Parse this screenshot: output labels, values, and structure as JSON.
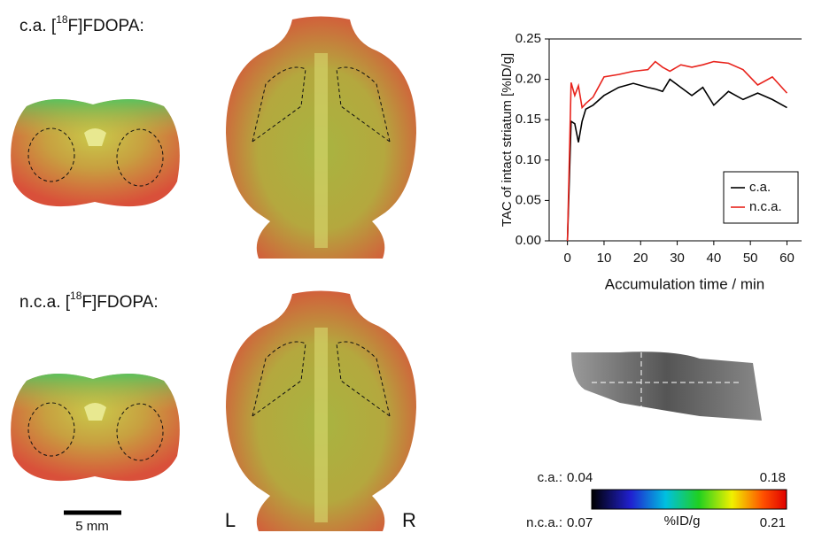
{
  "panels": {
    "ca_title": {
      "prefix": "c.a. [",
      "sup": "18",
      "suffix": "F]FDOPA:"
    },
    "nca_title": {
      "prefix": "n.c.a. [",
      "sup": "18",
      "suffix": "F]FDOPA:"
    },
    "scale_bar": "5 mm",
    "left": "L",
    "right": "R"
  },
  "colorbar": {
    "ca_label": "c.a.:",
    "ca_min": "0.04",
    "ca_max": "0.18",
    "nca_label": "n.c.a.:",
    "nca_min": "0.07",
    "nca_max": "0.21",
    "unit": "%ID/g"
  },
  "chart_data": {
    "type": "line",
    "x_label": "Accumulation time / min",
    "y_label": "TAC of intact striatum [%ID/g]",
    "x": [
      0,
      1,
      2,
      3,
      4,
      5,
      7,
      10,
      14,
      18,
      22,
      24,
      26,
      28,
      31,
      34,
      37,
      40,
      44,
      48,
      52,
      56,
      60
    ],
    "series": [
      {
        "name": "c.a.",
        "color": "#000000",
        "values": [
          0,
          0.148,
          0.145,
          0.122,
          0.148,
          0.163,
          0.168,
          0.18,
          0.19,
          0.195,
          0.19,
          0.188,
          0.185,
          0.2,
          0.19,
          0.18,
          0.19,
          0.168,
          0.185,
          0.175,
          0.183,
          0.175,
          0.165
        ]
      },
      {
        "name": "n.c.a.",
        "color": "#e8231c",
        "values": [
          0,
          0.196,
          0.18,
          0.192,
          0.165,
          0.17,
          0.178,
          0.203,
          0.206,
          0.21,
          0.212,
          0.222,
          0.215,
          0.21,
          0.218,
          0.215,
          0.218,
          0.222,
          0.22,
          0.212,
          0.193,
          0.203,
          0.183
        ]
      }
    ],
    "xlim": [
      -5,
      64
    ],
    "ylim": [
      0,
      0.25
    ],
    "xticks": [
      0,
      10,
      20,
      30,
      40,
      50,
      60
    ],
    "yticks": [
      {
        "value": 0,
        "label": "0.00"
      },
      {
        "value": 0.05,
        "label": "0.05"
      },
      {
        "value": 0.1,
        "label": "0.10"
      },
      {
        "value": 0.15,
        "label": "0.15"
      },
      {
        "value": 0.2,
        "label": "0.20"
      },
      {
        "value": 0.25,
        "label": "0.25"
      }
    ],
    "legend": "lower right"
  }
}
